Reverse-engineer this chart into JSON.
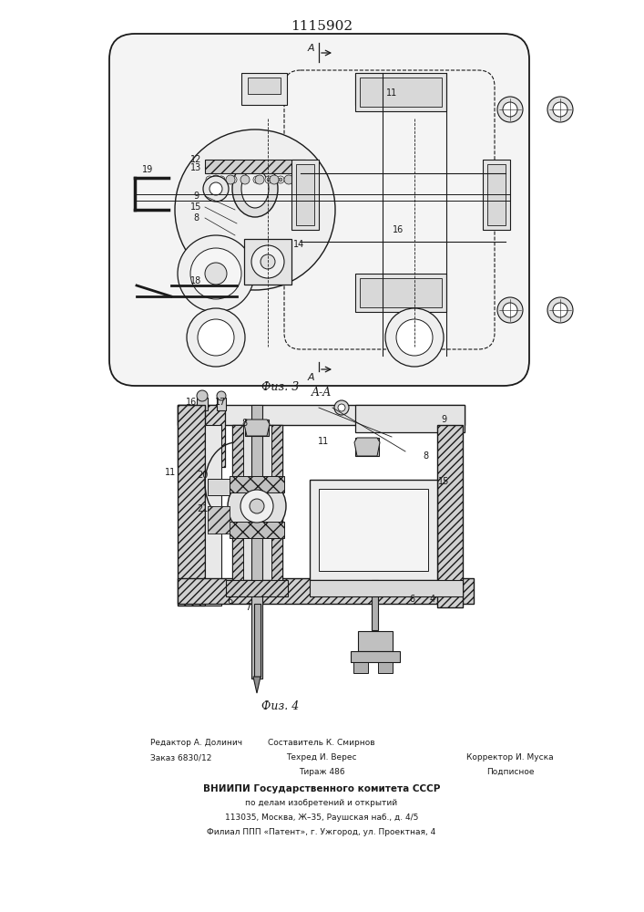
{
  "patent_number": "1115902",
  "fig3_label": "Физ. 3",
  "fig4_label": "Физ. 4",
  "section_label": "A-A",
  "bg_color": "#ffffff",
  "lc": "#1a1a1a",
  "footer": {
    "col1_line1": "Редактор А. Долинич",
    "col1_line2": "Заказ 6830/12",
    "col2_line0": "Составитель К. Смирнов",
    "col2_line1": "Техред И. Верес",
    "col2_line2": "Тираж 486",
    "col3_line1": "Корректор И. Муска",
    "col3_line2": "Подписное",
    "vniip": "ВНИИПИ Государственного комитета СССР",
    "line5": "по делам изобретений и открытий",
    "line6": "113035, Москва, Ж–35, Раушская наб., д. 4/5",
    "line7": "Филиал ППП «Патент», г. Ужгород, ул. Проектная, 4"
  }
}
